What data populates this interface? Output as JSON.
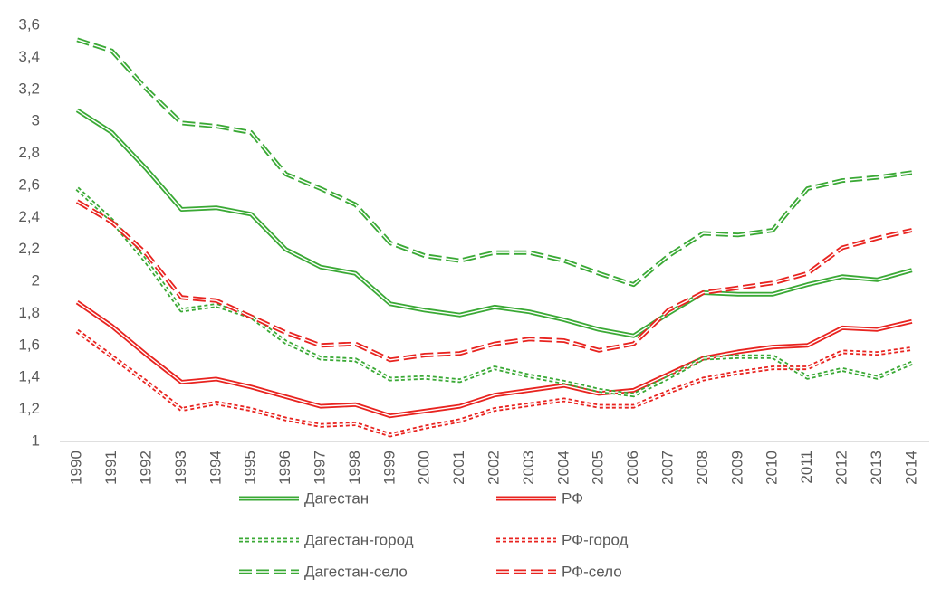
{
  "chart_data": {
    "type": "line",
    "categories": [
      1990,
      1991,
      1992,
      1993,
      1994,
      1995,
      1996,
      1997,
      1998,
      1999,
      2000,
      2001,
      2002,
      2003,
      2004,
      2005,
      2006,
      2007,
      2008,
      2009,
      2010,
      2011,
      2012,
      2013,
      2014
    ],
    "ylim": [
      1,
      3.6
    ],
    "yticks": [
      1,
      {
        "value": 1.2,
        "label": "1,2"
      },
      {
        "value": 1.4,
        "label": "1,4"
      },
      {
        "value": 1.6,
        "label": "1,6"
      },
      {
        "value": 1.8,
        "label": "1,8"
      },
      2,
      {
        "value": 2.2,
        "label": "2,2"
      },
      {
        "value": 2.4,
        "label": "2,4"
      },
      {
        "value": 2.6,
        "label": "2,6"
      },
      {
        "value": 2.8,
        "label": "2,8"
      },
      3,
      {
        "value": 3.2,
        "label": "3,2"
      },
      {
        "value": 3.4,
        "label": "3,4"
      },
      {
        "value": 3.6,
        "label": "3,6"
      }
    ],
    "grid": false,
    "legend": "bottom",
    "series": [
      {
        "name": "Дагестан",
        "color": "#3aa935",
        "style": "solid",
        "values": [
          3.07,
          2.93,
          2.7,
          2.45,
          2.46,
          2.42,
          2.2,
          2.09,
          2.05,
          1.86,
          1.82,
          1.79,
          1.84,
          1.81,
          1.76,
          1.7,
          1.66,
          1.8,
          1.93,
          1.92,
          1.92,
          1.98,
          2.03,
          2.01,
          2.07
        ]
      },
      {
        "name": "РФ",
        "color": "#e8231f",
        "style": "solid",
        "values": [
          1.87,
          1.72,
          1.54,
          1.37,
          1.39,
          1.34,
          1.28,
          1.22,
          1.23,
          1.16,
          1.19,
          1.22,
          1.29,
          1.32,
          1.35,
          1.3,
          1.32,
          1.42,
          1.52,
          1.56,
          1.59,
          1.6,
          1.71,
          1.7,
          1.75
        ]
      },
      {
        "name": "Дагестан-город",
        "color": "#3aa935",
        "style": "dotted",
        "values": [
          2.58,
          2.38,
          2.12,
          1.82,
          1.85,
          1.78,
          1.62,
          1.52,
          1.51,
          1.39,
          1.4,
          1.38,
          1.46,
          1.41,
          1.37,
          1.32,
          1.29,
          1.4,
          1.52,
          1.53,
          1.53,
          1.4,
          1.45,
          1.4,
          1.49
        ]
      },
      {
        "name": "РФ-город",
        "color": "#e8231f",
        "style": "dotted",
        "values": [
          1.69,
          1.53,
          1.37,
          1.2,
          1.24,
          1.2,
          1.14,
          1.1,
          1.11,
          1.04,
          1.09,
          1.13,
          1.2,
          1.23,
          1.26,
          1.22,
          1.22,
          1.31,
          1.39,
          1.43,
          1.46,
          1.46,
          1.56,
          1.55,
          1.58
        ]
      },
      {
        "name": "Дагестан-село",
        "color": "#3aa935",
        "style": "dashed",
        "values": [
          3.51,
          3.44,
          3.2,
          2.99,
          2.97,
          2.93,
          2.67,
          2.58,
          2.48,
          2.24,
          2.16,
          2.13,
          2.18,
          2.18,
          2.13,
          2.05,
          1.98,
          2.16,
          2.3,
          2.29,
          2.32,
          2.58,
          2.63,
          2.65,
          2.68
        ]
      },
      {
        "name": "РФ-село",
        "color": "#e8231f",
        "style": "dashed",
        "values": [
          2.5,
          2.37,
          2.17,
          1.9,
          1.88,
          1.78,
          1.68,
          1.6,
          1.61,
          1.51,
          1.54,
          1.55,
          1.61,
          1.64,
          1.63,
          1.57,
          1.61,
          1.82,
          1.93,
          1.96,
          1.99,
          2.05,
          2.21,
          2.27,
          2.32
        ]
      }
    ]
  }
}
